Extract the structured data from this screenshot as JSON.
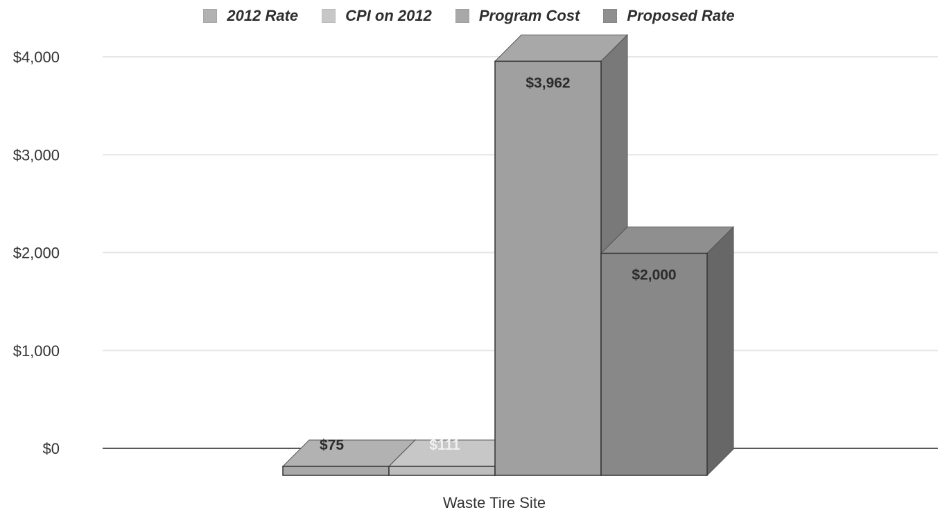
{
  "chart_data": {
    "type": "bar",
    "categories": [
      "Waste Tire Site"
    ],
    "series": [
      {
        "name": "2012 Rate",
        "values": [
          75
        ],
        "label": "$75",
        "color": "#b2b2b2"
      },
      {
        "name": "CPI on 2012",
        "values": [
          111
        ],
        "label": "$111",
        "color": "#c7c7c7"
      },
      {
        "name": "Program Cost",
        "values": [
          3962
        ],
        "label": "$3,962",
        "color": "#a8a8a8"
      },
      {
        "name": "Proposed Rate",
        "values": [
          2000
        ],
        "label": "$2,000",
        "color": "#8f8f8f"
      }
    ],
    "yticks": [
      "$0",
      "$1,000",
      "$2,000",
      "$3,000",
      "$4,000"
    ],
    "ylim": [
      0,
      4000
    ],
    "title": "",
    "xlabel": "",
    "ylabel": "",
    "legend_position": "top-center",
    "grid": true,
    "three_d": true
  }
}
